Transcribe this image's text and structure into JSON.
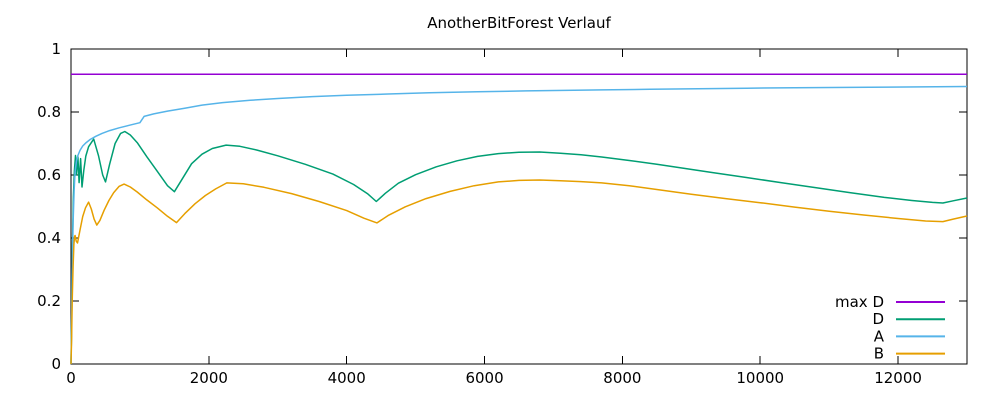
{
  "chart_data": {
    "type": "line",
    "title": "AnotherBitForest Verlauf",
    "xlabel": "",
    "ylabel": "",
    "xlim": [
      0,
      13000
    ],
    "ylim": [
      0,
      1
    ],
    "x_ticks": [
      0,
      2000,
      4000,
      6000,
      8000,
      10000,
      12000
    ],
    "x_tick_labels": [
      "0",
      "2000",
      "4000",
      "6000",
      "8000",
      "10000",
      "12000"
    ],
    "y_ticks": [
      0,
      0.2,
      0.4,
      0.6,
      0.8,
      1
    ],
    "y_tick_labels": [
      "0",
      "0.2",
      "0.4",
      "0.6",
      "0.8",
      "1"
    ],
    "grid": false,
    "background_color": "#ffffff",
    "border_color": "#000000",
    "legend_position": "inside-bottom-right",
    "series": [
      {
        "name": "max D",
        "color": "#9400d3",
        "points": [
          [
            0,
            0.92
          ],
          [
            13000,
            0.92
          ]
        ]
      },
      {
        "name": "D",
        "color": "#009e73",
        "points": [
          [
            0,
            0
          ],
          [
            10,
            0.15
          ],
          [
            22,
            0.38
          ],
          [
            35,
            0.53
          ],
          [
            50,
            0.615
          ],
          [
            65,
            0.662
          ],
          [
            80,
            0.6
          ],
          [
            100,
            0.658
          ],
          [
            118,
            0.576
          ],
          [
            140,
            0.652
          ],
          [
            160,
            0.562
          ],
          [
            185,
            0.615
          ],
          [
            215,
            0.66
          ],
          [
            255,
            0.69
          ],
          [
            330,
            0.714
          ],
          [
            400,
            0.66
          ],
          [
            460,
            0.6
          ],
          [
            500,
            0.578
          ],
          [
            560,
            0.634
          ],
          [
            640,
            0.7
          ],
          [
            720,
            0.732
          ],
          [
            780,
            0.738
          ],
          [
            860,
            0.727
          ],
          [
            960,
            0.703
          ],
          [
            1100,
            0.658
          ],
          [
            1250,
            0.612
          ],
          [
            1400,
            0.566
          ],
          [
            1500,
            0.547
          ],
          [
            1620,
            0.59
          ],
          [
            1750,
            0.636
          ],
          [
            1900,
            0.666
          ],
          [
            2050,
            0.684
          ],
          [
            2250,
            0.695
          ],
          [
            2450,
            0.691
          ],
          [
            2700,
            0.679
          ],
          [
            3000,
            0.661
          ],
          [
            3400,
            0.634
          ],
          [
            3800,
            0.603
          ],
          [
            4100,
            0.57
          ],
          [
            4300,
            0.541
          ],
          [
            4430,
            0.516
          ],
          [
            4560,
            0.542
          ],
          [
            4750,
            0.574
          ],
          [
            5000,
            0.601
          ],
          [
            5300,
            0.626
          ],
          [
            5600,
            0.645
          ],
          [
            5900,
            0.659
          ],
          [
            6200,
            0.668
          ],
          [
            6500,
            0.672
          ],
          [
            6800,
            0.673
          ],
          [
            7100,
            0.669
          ],
          [
            7400,
            0.664
          ],
          [
            7700,
            0.657
          ],
          [
            8100,
            0.646
          ],
          [
            8500,
            0.634
          ],
          [
            8900,
            0.621
          ],
          [
            9300,
            0.608
          ],
          [
            9800,
            0.592
          ],
          [
            10300,
            0.576
          ],
          [
            10800,
            0.56
          ],
          [
            11300,
            0.544
          ],
          [
            11800,
            0.529
          ],
          [
            12200,
            0.519
          ],
          [
            12500,
            0.513
          ],
          [
            12650,
            0.511
          ],
          [
            12800,
            0.518
          ],
          [
            13000,
            0.527
          ]
        ]
      },
      {
        "name": "A",
        "color": "#56b4e9",
        "points": [
          [
            0,
            0
          ],
          [
            8,
            0.12
          ],
          [
            18,
            0.3
          ],
          [
            30,
            0.45
          ],
          [
            45,
            0.55
          ],
          [
            60,
            0.61
          ],
          [
            80,
            0.645
          ],
          [
            100,
            0.662
          ],
          [
            130,
            0.678
          ],
          [
            170,
            0.692
          ],
          [
            220,
            0.703
          ],
          [
            280,
            0.713
          ],
          [
            360,
            0.723
          ],
          [
            450,
            0.732
          ],
          [
            560,
            0.741
          ],
          [
            700,
            0.75
          ],
          [
            850,
            0.758
          ],
          [
            1000,
            0.766
          ],
          [
            1060,
            0.786
          ],
          [
            1200,
            0.794
          ],
          [
            1400,
            0.803
          ],
          [
            1650,
            0.812
          ],
          [
            1900,
            0.822
          ],
          [
            2200,
            0.83
          ],
          [
            2600,
            0.837
          ],
          [
            3000,
            0.843
          ],
          [
            3500,
            0.849
          ],
          [
            4000,
            0.853
          ],
          [
            4600,
            0.857
          ],
          [
            5200,
            0.861
          ],
          [
            5900,
            0.864
          ],
          [
            6600,
            0.867
          ],
          [
            7300,
            0.869
          ],
          [
            7700,
            0.87
          ],
          [
            8400,
            0.872
          ],
          [
            9100,
            0.874
          ],
          [
            9800,
            0.8755
          ],
          [
            10500,
            0.877
          ],
          [
            11300,
            0.878
          ],
          [
            12100,
            0.8795
          ],
          [
            13000,
            0.881
          ]
        ]
      },
      {
        "name": "B",
        "color": "#e69f00",
        "points": [
          [
            0,
            0
          ],
          [
            8,
            0.08
          ],
          [
            18,
            0.2
          ],
          [
            30,
            0.31
          ],
          [
            42,
            0.38
          ],
          [
            52,
            0.405
          ],
          [
            60,
            0.408
          ],
          [
            75,
            0.39
          ],
          [
            95,
            0.384
          ],
          [
            130,
            0.425
          ],
          [
            170,
            0.468
          ],
          [
            210,
            0.496
          ],
          [
            255,
            0.514
          ],
          [
            295,
            0.492
          ],
          [
            335,
            0.46
          ],
          [
            375,
            0.441
          ],
          [
            420,
            0.456
          ],
          [
            480,
            0.488
          ],
          [
            550,
            0.519
          ],
          [
            620,
            0.544
          ],
          [
            700,
            0.564
          ],
          [
            770,
            0.571
          ],
          [
            860,
            0.562
          ],
          [
            960,
            0.546
          ],
          [
            1100,
            0.521
          ],
          [
            1250,
            0.496
          ],
          [
            1400,
            0.469
          ],
          [
            1530,
            0.449
          ],
          [
            1650,
            0.477
          ],
          [
            1800,
            0.509
          ],
          [
            1950,
            0.535
          ],
          [
            2100,
            0.556
          ],
          [
            2260,
            0.575
          ],
          [
            2500,
            0.572
          ],
          [
            2800,
            0.561
          ],
          [
            3200,
            0.541
          ],
          [
            3600,
            0.516
          ],
          [
            4000,
            0.487
          ],
          [
            4250,
            0.463
          ],
          [
            4440,
            0.448
          ],
          [
            4600,
            0.471
          ],
          [
            4850,
            0.499
          ],
          [
            5150,
            0.525
          ],
          [
            5500,
            0.548
          ],
          [
            5850,
            0.566
          ],
          [
            6200,
            0.578
          ],
          [
            6500,
            0.583
          ],
          [
            6800,
            0.584
          ],
          [
            7100,
            0.582
          ],
          [
            7400,
            0.579
          ],
          [
            7700,
            0.575
          ],
          [
            8100,
            0.566
          ],
          [
            8500,
            0.554
          ],
          [
            9000,
            0.539
          ],
          [
            9500,
            0.525
          ],
          [
            10000,
            0.512
          ],
          [
            10500,
            0.498
          ],
          [
            11000,
            0.485
          ],
          [
            11500,
            0.473
          ],
          [
            12000,
            0.462
          ],
          [
            12400,
            0.454
          ],
          [
            12650,
            0.452
          ],
          [
            12800,
            0.46
          ],
          [
            13000,
            0.47
          ]
        ]
      }
    ]
  }
}
